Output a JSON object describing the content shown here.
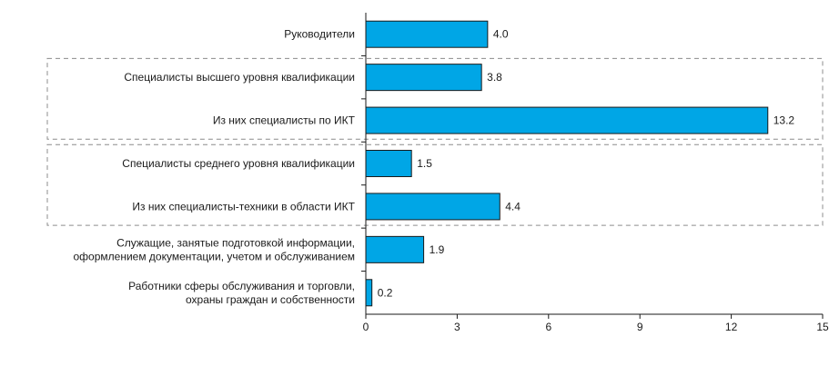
{
  "chart_data": {
    "type": "bar",
    "orientation": "horizontal",
    "categories": [
      [
        "Руководители"
      ],
      [
        "Специалисты высшего уровня квалификации"
      ],
      [
        "Из них специалисты по ИКТ"
      ],
      [
        "Специалисты среднего уровня квалификации"
      ],
      [
        "Из них специалисты-техники в области ИКТ"
      ],
      [
        "Служащие, занятые подготовкой информации,",
        "оформлением документации, учетом и обслуживанием"
      ],
      [
        "Работники сферы обслуживания и торговли,",
        "охраны граждан и собственности"
      ]
    ],
    "values": [
      4.0,
      3.8,
      13.2,
      1.5,
      4.4,
      1.9,
      0.2
    ],
    "value_labels": [
      "4.0",
      "3.8",
      "13.2",
      "1.5",
      "4.4",
      "1.9",
      "0.2"
    ],
    "xlim": [
      0,
      15
    ],
    "xticks": [
      0,
      3,
      6,
      9,
      12,
      15
    ],
    "xtick_labels": [
      "0",
      "3",
      "6",
      "9",
      "12",
      "15"
    ],
    "grid": false,
    "dashed_groups": [
      [
        1,
        2
      ],
      [
        3,
        4
      ]
    ],
    "colors": {
      "bar": "#00a6e6",
      "bar_stroke": "#1a1a1a",
      "axis": "#1a1a1a",
      "group_border": "#8c8c8c"
    }
  }
}
